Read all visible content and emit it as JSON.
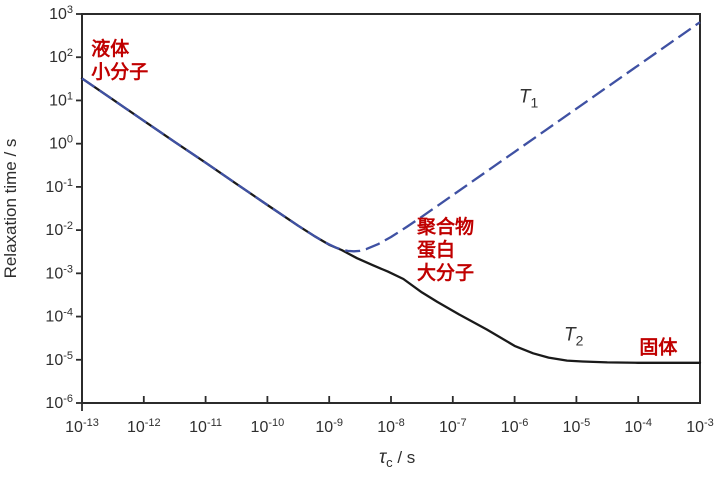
{
  "figure": {
    "background": "#ffffff"
  },
  "chart_data": {
    "type": "line",
    "title": "",
    "xlabel": {
      "base": "τ",
      "sub": "c",
      "suffix": " / s"
    },
    "ylabel": "Relaxation time / s",
    "x_scale": "log",
    "y_scale": "log",
    "xlim_log": [
      -13,
      -3
    ],
    "ylim_log": [
      -6,
      3
    ],
    "x_tick_exponents": [
      -13,
      -12,
      -11,
      -10,
      -9,
      -8,
      -7,
      -6,
      -5,
      -4,
      -3
    ],
    "y_tick_exponents": [
      3,
      2,
      1,
      0,
      -1,
      -2,
      -3,
      -4,
      -5,
      -6
    ],
    "tick_base": "10",
    "grid": false,
    "legend": "none",
    "axis_color": "#2b2b2b",
    "tick_label_color": "#2e2e2e",
    "series": [
      {
        "name": "T1",
        "label": {
          "base": "T",
          "sub": "1"
        },
        "style": "dashed",
        "color": "#3f51a3",
        "label_color": "#333333",
        "label_pos_log": [
          -5.93,
          0.95
        ],
        "points_log": [
          [
            -13,
            1.51
          ],
          [
            -12.5,
            1.02
          ],
          [
            -12,
            0.53
          ],
          [
            -11.5,
            0.04
          ],
          [
            -11,
            -0.44
          ],
          [
            -10.5,
            -0.93
          ],
          [
            -10,
            -1.42
          ],
          [
            -9.75,
            -1.66
          ],
          [
            -9.5,
            -1.9
          ],
          [
            -9.25,
            -2.13
          ],
          [
            -9.1,
            -2.26
          ],
          [
            -9.0,
            -2.33
          ],
          [
            -8.9,
            -2.4
          ],
          [
            -8.8,
            -2.45
          ],
          [
            -8.7,
            -2.48
          ],
          [
            -8.6,
            -2.49
          ],
          [
            -8.5,
            -2.48
          ],
          [
            -8.4,
            -2.44
          ],
          [
            -8.2,
            -2.32
          ],
          [
            -8.0,
            -2.16
          ],
          [
            -7.75,
            -1.93
          ],
          [
            -7.5,
            -1.69
          ],
          [
            -7.0,
            -1.19
          ],
          [
            -6.5,
            -0.69
          ],
          [
            -6.0,
            -0.19
          ],
          [
            -5.5,
            0.31
          ],
          [
            -5.0,
            0.81
          ],
          [
            -4.5,
            1.31
          ],
          [
            -4.0,
            1.81
          ],
          [
            -3.5,
            2.31
          ],
          [
            -3.0,
            2.81
          ]
        ]
      },
      {
        "name": "T2",
        "label": {
          "base": "T",
          "sub": "2"
        },
        "style": "solid",
        "color": "#1a1a1a",
        "label_color": "#333333",
        "label_pos_log": [
          -5.2,
          -4.55
        ],
        "points_log": [
          [
            -13,
            1.51
          ],
          [
            -12.5,
            1.02
          ],
          [
            -12,
            0.53
          ],
          [
            -11.5,
            0.04
          ],
          [
            -11,
            -0.44
          ],
          [
            -10.5,
            -0.93
          ],
          [
            -10,
            -1.42
          ],
          [
            -9.5,
            -1.9
          ],
          [
            -9.25,
            -2.13
          ],
          [
            -9.0,
            -2.34
          ],
          [
            -8.8,
            -2.46
          ],
          [
            -8.55,
            -2.65
          ],
          [
            -8.3,
            -2.81
          ],
          [
            -8.05,
            -2.96
          ],
          [
            -7.8,
            -3.13
          ],
          [
            -7.5,
            -3.44
          ],
          [
            -7.25,
            -3.66
          ],
          [
            -6.9,
            -3.95
          ],
          [
            -6.45,
            -4.3
          ],
          [
            -6.0,
            -4.68
          ],
          [
            -5.7,
            -4.85
          ],
          [
            -5.45,
            -4.95
          ],
          [
            -5.15,
            -5.02
          ],
          [
            -4.9,
            -5.04
          ],
          [
            -4.5,
            -5.06
          ],
          [
            -4.0,
            -5.07
          ],
          [
            -3.5,
            -5.07
          ],
          [
            -3.0,
            -5.07
          ]
        ]
      }
    ],
    "annotations": [
      {
        "id": "liquid",
        "lines": [
          "液体",
          "小分子"
        ],
        "color": "#c00000",
        "pos_log": [
          -12.85,
          2.05
        ]
      },
      {
        "id": "macromolecule",
        "lines": [
          "聚合物",
          "蛋白",
          "大分子"
        ],
        "color": "#c00000",
        "pos_log": [
          -7.58,
          -2.07
        ]
      },
      {
        "id": "solid",
        "lines": [
          "固体"
        ],
        "color": "#c00000",
        "pos_log": [
          -3.98,
          -4.85
        ]
      }
    ]
  }
}
